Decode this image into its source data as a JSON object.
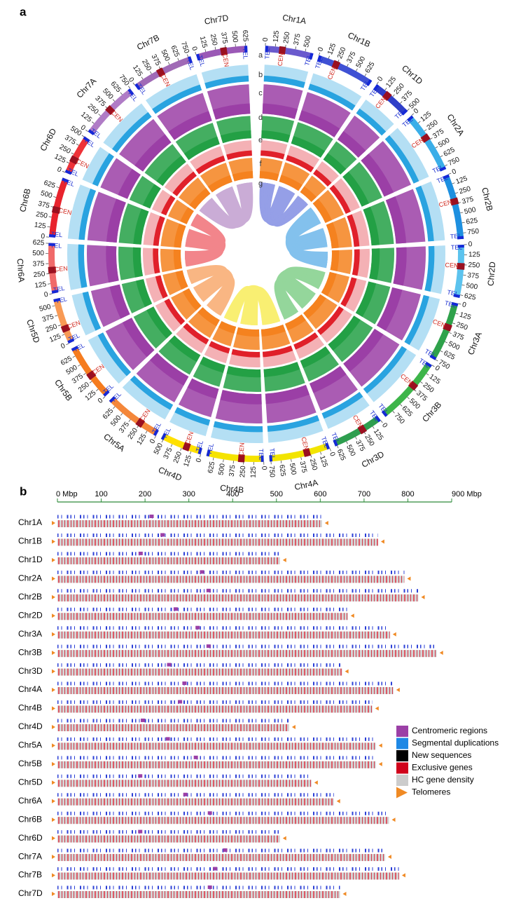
{
  "panel_a": {
    "label": "a",
    "tel_label": "TEL",
    "cen_label": "CEN",
    "rings": [
      "a",
      "b",
      "c",
      "d",
      "e",
      "f",
      "g"
    ],
    "chromosomes": [
      {
        "name": "Chr1A",
        "color": "#6a5acd",
        "length": 604,
        "centromere": 215,
        "ticks": [
          0,
          125,
          250,
          375,
          500
        ]
      },
      {
        "name": "Chr1B",
        "color": "#3f51d4",
        "length": 732,
        "centromere": 240,
        "ticks": [
          0,
          125,
          250,
          375,
          500,
          625
        ]
      },
      {
        "name": "Chr1D",
        "color": "#2f3fc8",
        "length": 508,
        "centromere": 190,
        "ticks": [
          0,
          125,
          250,
          375,
          500
        ]
      },
      {
        "name": "Chr2A",
        "color": "#3aaee8",
        "length": 792,
        "centromere": 330,
        "ticks": [
          0,
          125,
          250,
          375,
          500,
          625,
          750
        ]
      },
      {
        "name": "Chr2B",
        "color": "#1e90e0",
        "length": 824,
        "centromere": 345,
        "ticks": [
          0,
          125,
          250,
          375,
          500,
          625,
          750
        ]
      },
      {
        "name": "Chr2D",
        "color": "#5cc3ee",
        "length": 663,
        "centromere": 270,
        "ticks": [
          0,
          125,
          250,
          375,
          500,
          625
        ]
      },
      {
        "name": "Chr3A",
        "color": "#2fa24b",
        "length": 759,
        "centromere": 320,
        "ticks": [
          0,
          125,
          250,
          375,
          500,
          625,
          750
        ]
      },
      {
        "name": "Chr3B",
        "color": "#3db54a",
        "length": 866,
        "centromere": 345,
        "ticks": [
          0,
          125,
          250,
          375,
          500,
          625,
          750
        ]
      },
      {
        "name": "Chr3D",
        "color": "#2e9e4f",
        "length": 650,
        "centromere": 255,
        "ticks": [
          0,
          125,
          250,
          375,
          500,
          625
        ]
      },
      {
        "name": "Chr4A",
        "color": "#f2e400",
        "length": 767,
        "centromere": 290,
        "ticks": [
          0,
          125,
          250,
          375,
          500,
          625,
          750
        ]
      },
      {
        "name": "Chr4B",
        "color": "#f5e300",
        "length": 719,
        "centromere": 280,
        "ticks": [
          0,
          125,
          250,
          375,
          500,
          625
        ]
      },
      {
        "name": "Chr4D",
        "color": "#ffe000",
        "length": 529,
        "centromere": 195,
        "ticks": [
          0,
          125,
          250,
          375,
          500
        ]
      },
      {
        "name": "Chr5A",
        "color": "#f4873a",
        "length": 727,
        "centromere": 252,
        "ticks": [
          0,
          125,
          250,
          375,
          500,
          625
        ]
      },
      {
        "name": "Chr5B",
        "color": "#f57c1f",
        "length": 727,
        "centromere": 316,
        "ticks": [
          0,
          125,
          250,
          375,
          500,
          625
        ]
      },
      {
        "name": "Chr5D",
        "color": "#f89a55",
        "length": 580,
        "centromere": 189,
        "ticks": [
          0,
          125,
          250,
          375,
          500
        ]
      },
      {
        "name": "Chr6A",
        "color": "#f06a6a",
        "length": 631,
        "centromere": 292,
        "ticks": [
          0,
          125,
          250,
          375,
          500,
          625
        ]
      },
      {
        "name": "Chr6B",
        "color": "#e8232d",
        "length": 757,
        "centromere": 348,
        "ticks": [
          0,
          125,
          250,
          375,
          500,
          625
        ]
      },
      {
        "name": "Chr6D",
        "color": "#ee3238",
        "length": 508,
        "centromere": 189,
        "ticks": [
          0,
          125,
          250,
          375,
          500
        ]
      },
      {
        "name": "Chr7A",
        "color": "#b07cc6",
        "length": 748,
        "centromere": 383,
        "ticks": [
          0,
          125,
          250,
          375,
          500,
          625,
          750
        ]
      },
      {
        "name": "Chr7B",
        "color": "#a06ab6",
        "length": 780,
        "centromere": 360,
        "ticks": [
          0,
          125,
          250,
          375,
          500,
          625,
          750
        ]
      },
      {
        "name": "Chr7D",
        "color": "#9b59b6",
        "length": 645,
        "centromere": 348,
        "ticks": [
          0,
          125,
          250,
          375,
          500,
          625
        ]
      }
    ]
  },
  "panel_b": {
    "label": "b",
    "axis_ticks": [
      {
        "value": 0,
        "label": "0 Mbp"
      },
      100,
      200,
      300,
      400,
      500,
      600,
      700,
      800,
      {
        "value": 900,
        "label": "900 Mbp"
      }
    ],
    "legend": [
      {
        "label": "Centromeric regions",
        "color": "#9b3fa6"
      },
      {
        "label": "Segmental duplications",
        "color": "#1e88e5"
      },
      {
        "label": "New sequences",
        "color": "#000000"
      },
      {
        "label": "Exclusive genes",
        "color": "#d0021b"
      },
      {
        "label": "HC gene density",
        "color": "#cccccc"
      },
      {
        "label": "Telomeres",
        "color": "#f08a24"
      }
    ]
  }
}
